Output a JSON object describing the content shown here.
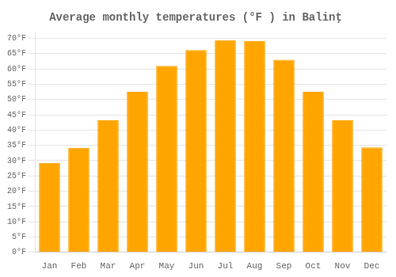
{
  "chart_data": {
    "type": "bar",
    "title": "Average monthly temperatures (°F ) in Balinţ",
    "categories": [
      "Jan",
      "Feb",
      "Mar",
      "Apr",
      "May",
      "Jun",
      "Jul",
      "Aug",
      "Sep",
      "Oct",
      "Nov",
      "Dec"
    ],
    "values": [
      29.3,
      34.2,
      43.2,
      52.5,
      61.0,
      66.2,
      69.4,
      69.1,
      63.0,
      52.5,
      43.2,
      34.3
    ],
    "color": "#FFA500",
    "ylim": [
      0,
      72
    ],
    "yticks": [
      {
        "value": 0,
        "label": "0°F"
      },
      {
        "value": 5,
        "label": "5°F"
      },
      {
        "value": 10,
        "label": "10°F"
      },
      {
        "value": 15,
        "label": "15°F"
      },
      {
        "value": 20,
        "label": "20°F"
      },
      {
        "value": 25,
        "label": "25°F"
      },
      {
        "value": 30,
        "label": "30°F"
      },
      {
        "value": 35,
        "label": "35°F"
      },
      {
        "value": 40,
        "label": "40°F"
      },
      {
        "value": 45,
        "label": "45°F"
      },
      {
        "value": 50,
        "label": "50°F"
      },
      {
        "value": 55,
        "label": "55°F"
      },
      {
        "value": 60,
        "label": "60°F"
      },
      {
        "value": 65,
        "label": "65°F"
      },
      {
        "value": 70,
        "label": "70°F"
      }
    ],
    "grid": true
  }
}
